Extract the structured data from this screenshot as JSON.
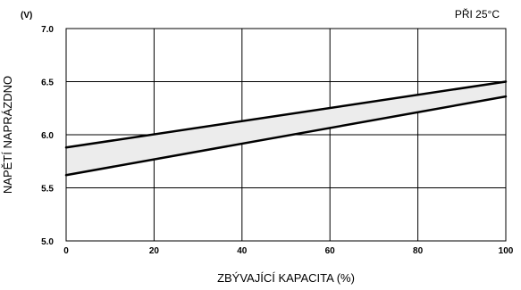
{
  "chart_data": {
    "type": "area",
    "x": [
      0,
      100
    ],
    "series": [
      {
        "values": [
          5.88,
          6.5
        ]
      },
      {
        "values": [
          5.62,
          6.36
        ]
      }
    ],
    "band_fill_color": "#ececec",
    "line_color": "#000000",
    "xlabel": "ZBÝVAJÍCÍ KAPACITA (%)",
    "ylabel": "NAPĚTÍ NAPRÁZDNO",
    "yunit": "(V)",
    "annotation": "PŘI 25°C",
    "xlim": [
      0,
      100
    ],
    "ylim": [
      5.0,
      7.0
    ],
    "xticks": [
      0,
      20,
      40,
      60,
      80,
      100
    ],
    "yticks": [
      5.0,
      5.5,
      6.0,
      6.5,
      7.0
    ],
    "xtick_labels": [
      "0",
      "20",
      "40",
      "60",
      "80",
      "100"
    ],
    "ytick_labels": [
      "5.0",
      "5.5",
      "6.0",
      "6.5",
      "7.0"
    ],
    "grid": true
  }
}
